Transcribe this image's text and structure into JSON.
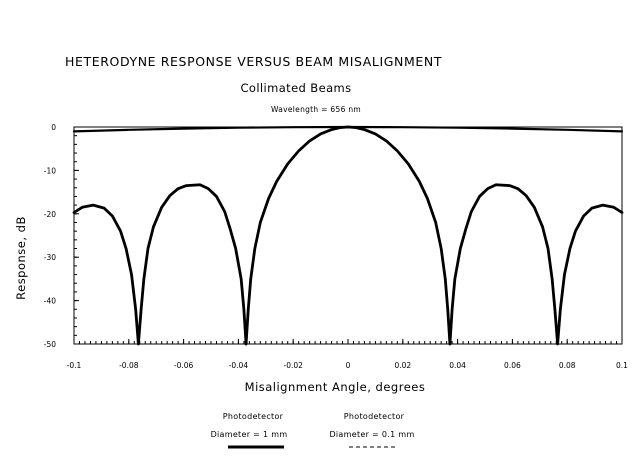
{
  "chart_data": {
    "type": "line",
    "title": "HETERODYNE RESPONSE VERSUS BEAM MISALIGNMENT",
    "subtitle": "Collimated Beams",
    "annotation": "Wavelength = 656 nm",
    "xlabel": "Misalignment Angle, degrees",
    "ylabel": "Response, dB",
    "xlim": [
      -0.1,
      0.1
    ],
    "ylim": [
      -50,
      0
    ],
    "x_ticks": [
      "-0.1",
      "-0.08",
      "-0.06",
      "-0.04",
      "-0.02",
      "0",
      "0.02",
      "0.04",
      "0.06",
      "0.08",
      "0.1"
    ],
    "y_ticks": [
      "0",
      "-10",
      "-20",
      "-30",
      "-40",
      "-50"
    ],
    "grid": false,
    "legend_position": "bottom",
    "series": [
      {
        "name_line1": "Photodetector",
        "name_line2": "Diameter = 1 mm",
        "style": "solid",
        "color": "#000000",
        "points": [
          [
            -0.1,
            -19.7
          ],
          [
            -0.097,
            -18.5
          ],
          [
            -0.093,
            -18.0
          ],
          [
            -0.089,
            -18.7
          ],
          [
            -0.086,
            -20.5
          ],
          [
            -0.083,
            -24
          ],
          [
            -0.081,
            -28
          ],
          [
            -0.079,
            -34
          ],
          [
            -0.0775,
            -42
          ],
          [
            -0.0765,
            -50
          ],
          [
            -0.0755,
            -42
          ],
          [
            -0.0745,
            -35
          ],
          [
            -0.073,
            -28
          ],
          [
            -0.071,
            -23
          ],
          [
            -0.068,
            -18.5
          ],
          [
            -0.065,
            -15.8
          ],
          [
            -0.062,
            -14.2
          ],
          [
            -0.059,
            -13.5
          ],
          [
            -0.054,
            -13.3
          ],
          [
            -0.051,
            -14.2
          ],
          [
            -0.048,
            -16.0
          ],
          [
            -0.045,
            -19.5
          ],
          [
            -0.043,
            -23.5
          ],
          [
            -0.041,
            -28
          ],
          [
            -0.039,
            -35
          ],
          [
            -0.038,
            -42
          ],
          [
            -0.0372,
            -50
          ],
          [
            -0.0364,
            -42
          ],
          [
            -0.0355,
            -35
          ],
          [
            -0.034,
            -28
          ],
          [
            -0.032,
            -22
          ],
          [
            -0.029,
            -16.5
          ],
          [
            -0.026,
            -12.5
          ],
          [
            -0.022,
            -8.5
          ],
          [
            -0.018,
            -5.5
          ],
          [
            -0.014,
            -3.2
          ],
          [
            -0.01,
            -1.6
          ],
          [
            -0.006,
            -0.6
          ],
          [
            -0.003,
            -0.15
          ],
          [
            0.0,
            0.0
          ],
          [
            0.003,
            -0.15
          ],
          [
            0.006,
            -0.6
          ],
          [
            0.01,
            -1.6
          ],
          [
            0.014,
            -3.2
          ],
          [
            0.018,
            -5.5
          ],
          [
            0.022,
            -8.5
          ],
          [
            0.026,
            -12.5
          ],
          [
            0.029,
            -16.5
          ],
          [
            0.032,
            -22
          ],
          [
            0.034,
            -28
          ],
          [
            0.0355,
            -35
          ],
          [
            0.0364,
            -42
          ],
          [
            0.0372,
            -50
          ],
          [
            0.038,
            -42
          ],
          [
            0.039,
            -35
          ],
          [
            0.041,
            -28
          ],
          [
            0.043,
            -23.5
          ],
          [
            0.045,
            -19.5
          ],
          [
            0.048,
            -16.0
          ],
          [
            0.051,
            -14.2
          ],
          [
            0.054,
            -13.3
          ],
          [
            0.059,
            -13.5
          ],
          [
            0.062,
            -14.2
          ],
          [
            0.065,
            -15.8
          ],
          [
            0.068,
            -18.5
          ],
          [
            0.071,
            -23
          ],
          [
            0.073,
            -28
          ],
          [
            0.0745,
            -35
          ],
          [
            0.0755,
            -42
          ],
          [
            0.0765,
            -50
          ],
          [
            0.0775,
            -42
          ],
          [
            0.079,
            -34
          ],
          [
            0.081,
            -28
          ],
          [
            0.083,
            -24
          ],
          [
            0.086,
            -20.5
          ],
          [
            0.089,
            -18.7
          ],
          [
            0.093,
            -18.0
          ],
          [
            0.097,
            -18.5
          ],
          [
            0.1,
            -19.7
          ]
        ]
      },
      {
        "name_line1": "Photodetector",
        "name_line2": "Diameter = 0.1 mm",
        "style": "dashed",
        "color": "#000000",
        "points": [
          [
            -0.1,
            -1.0
          ],
          [
            -0.08,
            -0.65
          ],
          [
            -0.06,
            -0.37
          ],
          [
            -0.04,
            -0.16
          ],
          [
            -0.02,
            -0.04
          ],
          [
            0.0,
            0.0
          ],
          [
            0.02,
            -0.04
          ],
          [
            0.04,
            -0.16
          ],
          [
            0.06,
            -0.37
          ],
          [
            0.08,
            -0.65
          ],
          [
            0.1,
            -1.0
          ]
        ]
      }
    ]
  }
}
